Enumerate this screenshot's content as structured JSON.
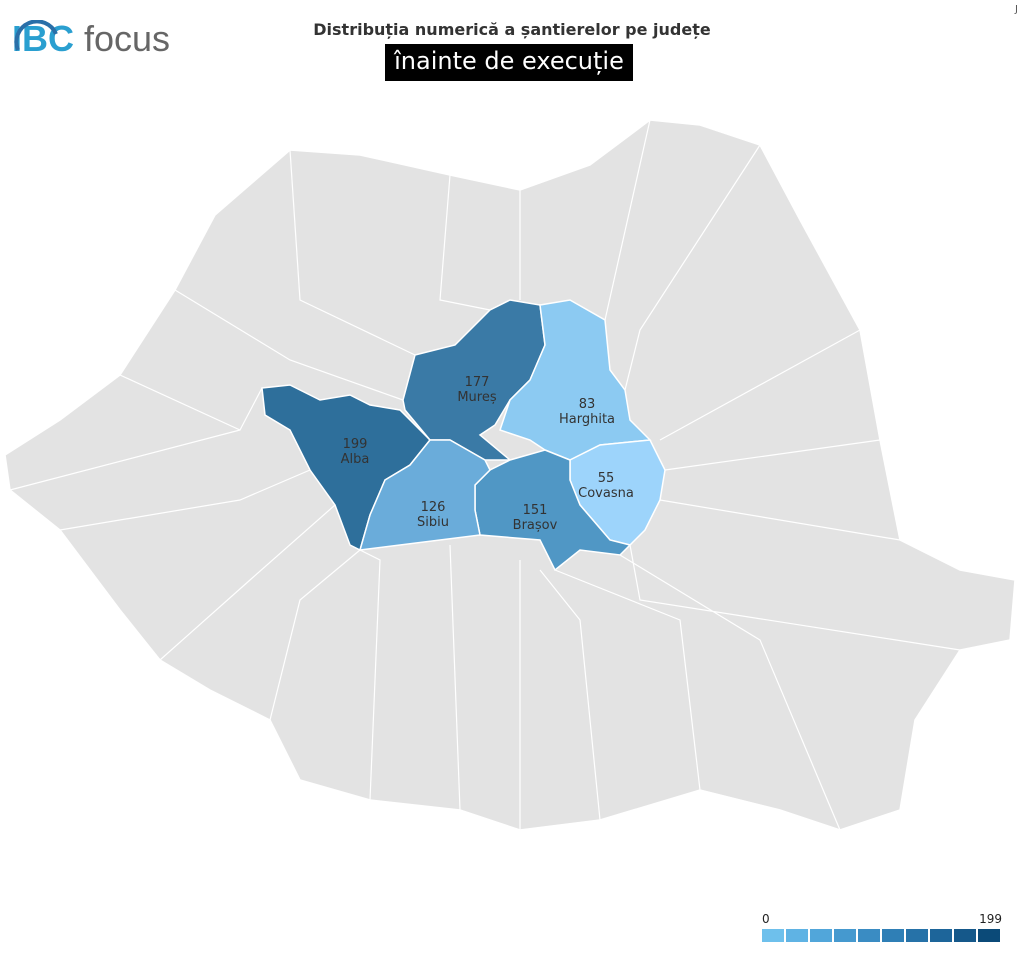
{
  "logo": {
    "text1": "IBC",
    "text2": "focus"
  },
  "title": "Distribuția numerică a șantierelor pe județe",
  "subtitle": "înainte de execuție",
  "corner_mark": "J",
  "map": {
    "base_color": "#e3e3e3",
    "border_color": "#ffffff",
    "regions": [
      {
        "name": "Alba",
        "value": 199,
        "color": "#2e6f9b"
      },
      {
        "name": "Mureș",
        "value": 177,
        "color": "#3a7aa6"
      },
      {
        "name": "Harghita",
        "value": 83,
        "color": "#8ccaf2"
      },
      {
        "name": "Covasna",
        "value": 55,
        "color": "#9dd4fb"
      },
      {
        "name": "Brașov",
        "value": 151,
        "color": "#5097c5"
      },
      {
        "name": "Sibiu",
        "value": 126,
        "color": "#6aacda"
      }
    ]
  },
  "legend": {
    "min": "0",
    "max": "199",
    "colors": [
      "#6ec0ec",
      "#5fb3e4",
      "#51a6da",
      "#4599cf",
      "#3a8cc3",
      "#2f7fb6",
      "#2672a8",
      "#1d659a",
      "#15588a",
      "#0b4a78"
    ]
  }
}
